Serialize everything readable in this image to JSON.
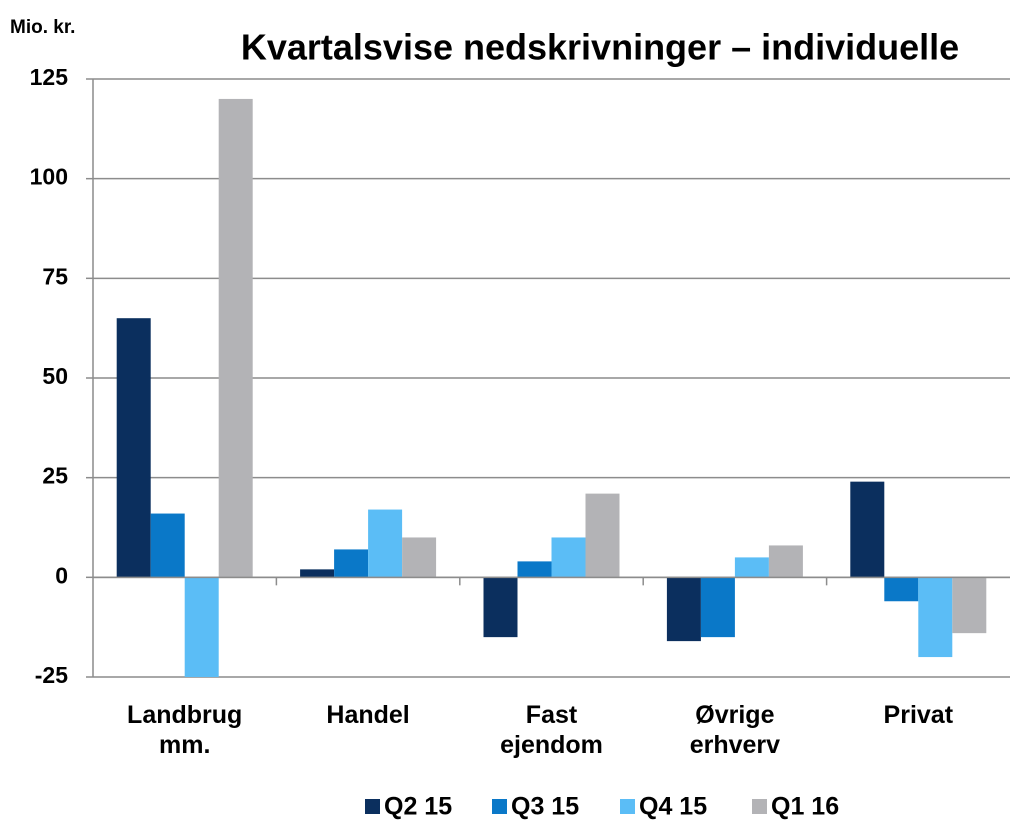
{
  "chart_data": {
    "type": "bar",
    "title": "Kvartalsvise nedskrivninger – individuelle",
    "y_axis_label": "Mio. kr.",
    "categories": [
      "Landbrug\nmm.",
      "Handel",
      "Fast\nejendom",
      "Øvrige\nerhverv",
      "Privat"
    ],
    "series": [
      {
        "name": "Q2 15",
        "color": "#0b2f5e",
        "values": [
          65,
          2,
          -15,
          -16,
          24
        ]
      },
      {
        "name": "Q3 15",
        "color": "#0a78c8",
        "values": [
          16,
          7,
          4,
          -15,
          -6
        ]
      },
      {
        "name": "Q4 15",
        "color": "#5bbdf6",
        "values": [
          -25,
          17,
          10,
          5,
          -20
        ]
      },
      {
        "name": "Q1 16",
        "color": "#b3b3b6",
        "values": [
          120,
          10,
          21,
          8,
          -14
        ]
      }
    ],
    "ylim": [
      -25,
      125
    ],
    "yticks": [
      -25,
      0,
      25,
      50,
      75,
      100,
      125
    ],
    "grid": true
  }
}
